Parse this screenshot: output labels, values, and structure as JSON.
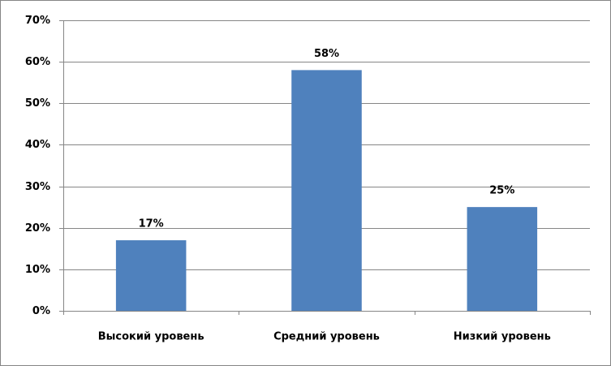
{
  "chart_data": {
    "type": "bar",
    "categories": [
      "Высокий уровень",
      "Средний уровень",
      "Низкий уровень"
    ],
    "values": [
      17,
      58,
      25
    ],
    "value_labels": [
      "17%",
      "58%",
      "25%"
    ],
    "color": "#4f81bd",
    "ylim": [
      0,
      70
    ],
    "yticks": [
      {
        "value": 0,
        "label": "0%"
      },
      {
        "value": 10,
        "label": "10%"
      },
      {
        "value": 20,
        "label": "20%"
      },
      {
        "value": 30,
        "label": "30%"
      },
      {
        "value": 40,
        "label": "40%"
      },
      {
        "value": 50,
        "label": "50%"
      },
      {
        "value": 60,
        "label": "60%"
      },
      {
        "value": 70,
        "label": "70%"
      }
    ],
    "grid": true
  }
}
